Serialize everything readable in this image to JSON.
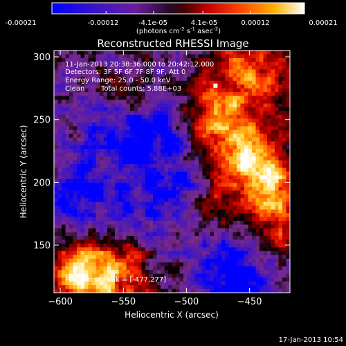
{
  "colorbar": {
    "tick_labels": [
      "-0.00021",
      "-0.00012",
      "-4.1e-05",
      "4.1e-05",
      "0.00012",
      "0.00021"
    ],
    "tick_values": [
      -0.00021,
      -0.00012,
      -4.1e-05,
      4.1e-05,
      0.00012,
      0.00021
    ],
    "range": [
      -0.00021,
      0.00021
    ],
    "units_main": "(photons cm",
    "units_sup1": "-2",
    "units_mid": " s",
    "units_sup2": "-1",
    "units_end": " asec",
    "units_sup3": "-2",
    "units_close": ")"
  },
  "chart_data": {
    "type": "heatmap",
    "title": "Reconstructed RHESSI Image",
    "xlabel": "Heliocentric X (arcsec)",
    "ylabel": "Heliocentric Y (arcsec)",
    "xlim": [
      -605,
      -418
    ],
    "ylim": [
      112,
      305
    ],
    "x_ticks": [
      -600,
      -550,
      -500,
      -450
    ],
    "y_ticks": [
      150,
      200,
      250,
      300
    ],
    "grid": false,
    "colormap": [
      "#0000ff",
      "#3a14c8",
      "#5a1ea8",
      "#7a2a8a",
      "#000000",
      "#6a0000",
      "#c80000",
      "#ff3a00",
      "#ff9a00",
      "#ffe060",
      "#ffffff"
    ],
    "peak": [
      -477,
      277
    ],
    "bright_regions": [
      {
        "x": -475,
        "y": 248,
        "level": 0.95,
        "extent": 22
      },
      {
        "x": -455,
        "y": 215,
        "level": 0.9,
        "extent": 18
      },
      {
        "x": -430,
        "y": 205,
        "level": 1.0,
        "extent": 18
      },
      {
        "x": -445,
        "y": 290,
        "level": 0.85,
        "extent": 25
      },
      {
        "x": -560,
        "y": 125,
        "level": 0.9,
        "extent": 28
      },
      {
        "x": -585,
        "y": 130,
        "level": 0.75,
        "extent": 20
      },
      {
        "x": -545,
        "y": 270,
        "level": 0.6,
        "extent": 16
      },
      {
        "x": -430,
        "y": 165,
        "level": 0.7,
        "extent": 20
      },
      {
        "x": -475,
        "y": 180,
        "level": 0.6,
        "extent": 16
      }
    ],
    "dim_regions": [
      {
        "x": -520,
        "y": 200,
        "level": -0.5,
        "extent": 45
      },
      {
        "x": -460,
        "y": 125,
        "level": -0.9,
        "extent": 20
      },
      {
        "x": -540,
        "y": 240,
        "level": -0.6,
        "extent": 20
      },
      {
        "x": -590,
        "y": 175,
        "level": -0.5,
        "extent": 20
      }
    ],
    "annotations": {
      "time_range": "11-Jan-2013 20:38:36.000 to 20:42:12.000",
      "detectors": "Detectors: 3F 5F 6F 7F 8F 9F, Att 0",
      "energy_range": "Energy Range: 25.0 - 50.0 keV",
      "clean": "Clean",
      "total_counts": "Total counts: 5.88E+03",
      "peak_position": "Position of Peak = [-477,277]"
    }
  },
  "footer": {
    "date_time": "17-Jan-2013 10:54"
  }
}
